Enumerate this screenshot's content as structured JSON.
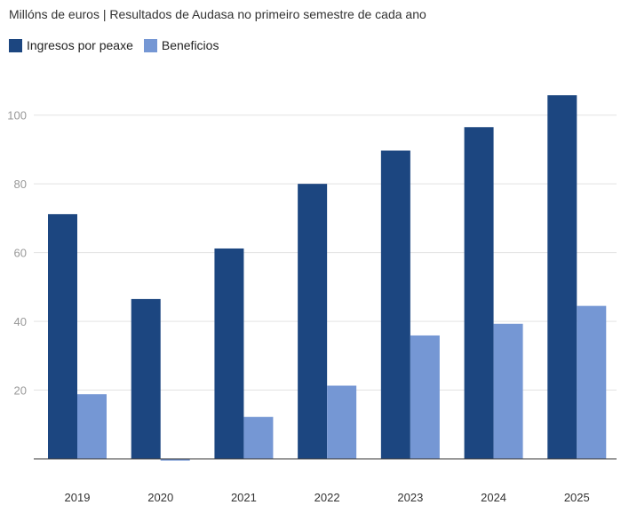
{
  "subtitle": "Millóns de euros | Resultados de Audasa no primeiro semestre de cada ano",
  "legend": [
    {
      "label": "Ingresos por peaxe",
      "color": "#1c4680"
    },
    {
      "label": "Beneficios",
      "color": "#7597d4"
    }
  ],
  "chart_data": {
    "type": "bar",
    "title": "",
    "subtitle": "Millóns de euros | Resultados de Audasa no primeiro semestre de cada ano",
    "categories": [
      "2019",
      "2020",
      "2021",
      "2022",
      "2023",
      "2024",
      "2025"
    ],
    "series": [
      {
        "name": "Ingresos por peaxe",
        "color": "#1c4680",
        "values": [
          71.2,
          46.5,
          61.2,
          80.0,
          89.7,
          96.5,
          105.8
        ]
      },
      {
        "name": "Beneficios",
        "color": "#7597d4",
        "values": [
          18.8,
          -0.5,
          12.2,
          21.3,
          35.9,
          39.3,
          44.5
        ]
      }
    ],
    "yticks": [
      20,
      40,
      60,
      80,
      100
    ],
    "ylim": [
      0,
      110
    ],
    "xlabel": "",
    "ylabel": "",
    "grid": true,
    "legend": "top-left"
  }
}
